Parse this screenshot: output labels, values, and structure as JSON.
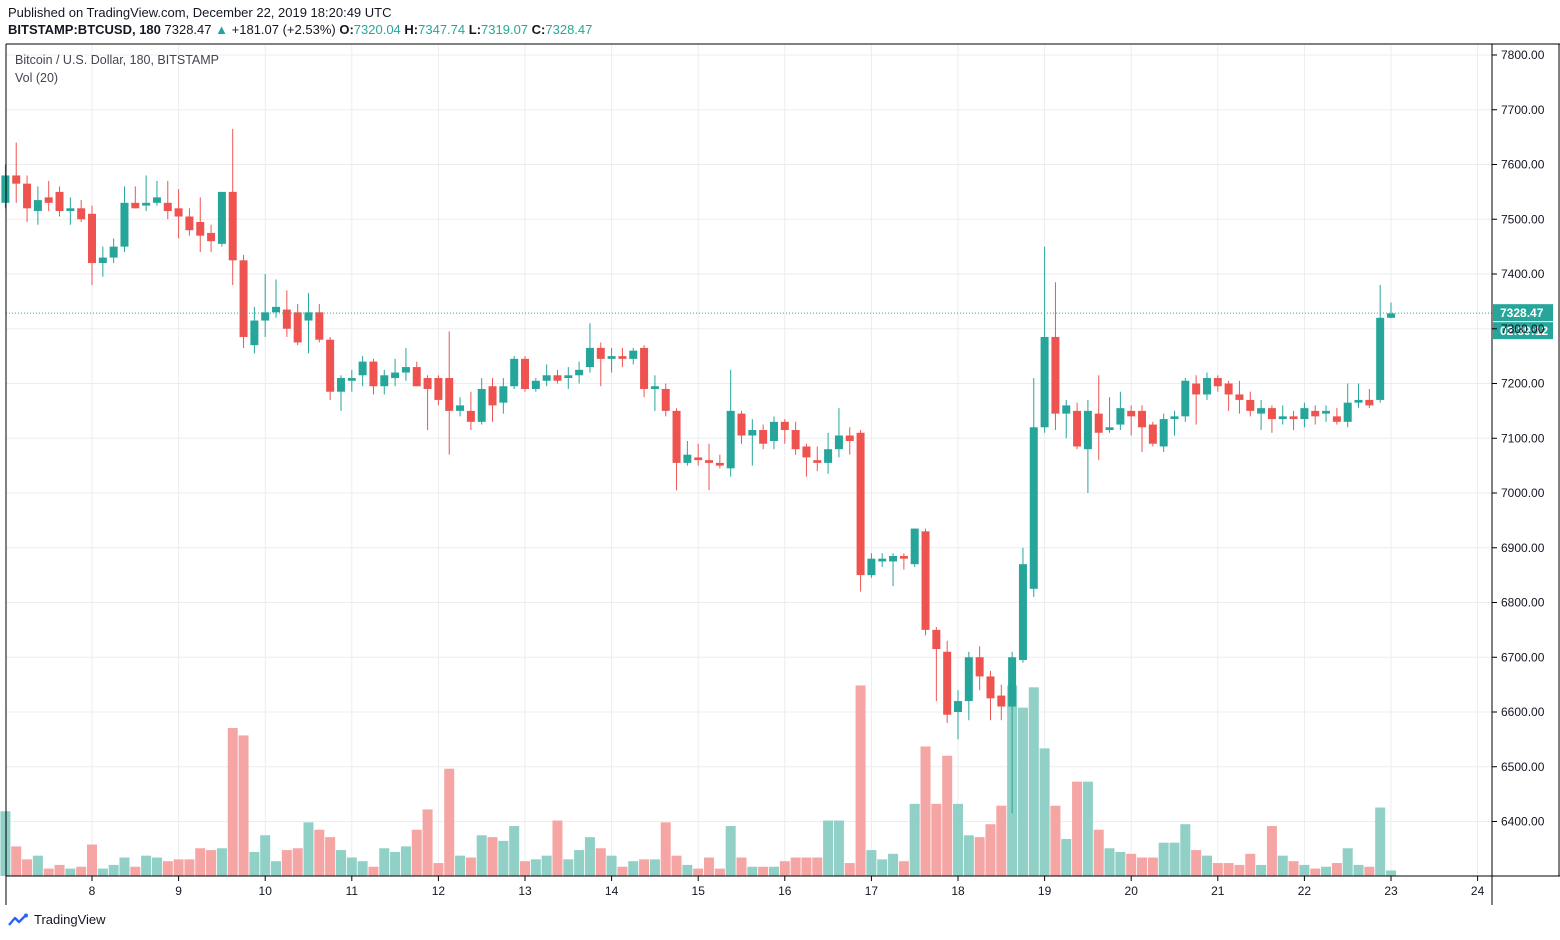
{
  "header": {
    "published": "Published on TradingView.com, December 22, 2019 18:20:49 UTC",
    "symbol": "BITSTAMP:BTCUSD, 180",
    "last": "7328.47",
    "change": "+181.07 (+2.53%)",
    "o_label": "O:",
    "o_value": "7320.04",
    "h_label": "H:",
    "h_value": "7347.74",
    "l_label": "L:",
    "l_value": "7319.07",
    "c_label": "C:",
    "c_value": "7328.47"
  },
  "overlay": {
    "title": "Bitcoin / U.S. Dollar, 180, BITSTAMP",
    "volume": "Vol (20)"
  },
  "footer": {
    "brand": "TradingView"
  },
  "colors": {
    "up": "#26a69a",
    "down": "#ef5350",
    "up_vol": "#90d0c6",
    "down_vol": "#f5a6a4",
    "grid": "#ecedf0",
    "axis": "#000000"
  },
  "chart_data": {
    "type": "candlestick",
    "title": "Bitcoin / U.S. Dollar, 180, BITSTAMP",
    "x_ticks": [
      "8",
      "9",
      "10",
      "11",
      "12",
      "13",
      "14",
      "15",
      "16",
      "17",
      "18",
      "19",
      "20",
      "21",
      "22",
      "23",
      "24"
    ],
    "y_ticks": [
      "6400.00",
      "6500.00",
      "6600.00",
      "6700.00",
      "6800.00",
      "6900.00",
      "7000.00",
      "7100.00",
      "7200.00",
      "7300.00",
      "7400.00",
      "7500.00",
      "7600.00",
      "7700.00",
      "7800.00"
    ],
    "y_range": [
      6290,
      7820
    ],
    "x_range_days": [
      7.0,
      24.0
    ],
    "last_price": 7328.47,
    "last_price_label": "7328.47",
    "countdown_label": "02:39:12",
    "volume_axis_max": 1000,
    "candles": [
      {
        "t": 7.0,
        "o": 7530,
        "h": 7600,
        "l": 7520,
        "c": 7580,
        "v": 35
      },
      {
        "t": 7.125,
        "o": 7580,
        "h": 7640,
        "l": 7530,
        "c": 7565,
        "v": 16
      },
      {
        "t": 7.25,
        "o": 7565,
        "h": 7580,
        "l": 7495,
        "c": 7520,
        "v": 9
      },
      {
        "t": 7.375,
        "o": 7515,
        "h": 7560,
        "l": 7490,
        "c": 7535,
        "v": 11
      },
      {
        "t": 7.5,
        "o": 7540,
        "h": 7570,
        "l": 7515,
        "c": 7530,
        "v": 4
      },
      {
        "t": 7.625,
        "o": 7550,
        "h": 7560,
        "l": 7505,
        "c": 7515,
        "v": 6
      },
      {
        "t": 7.75,
        "o": 7515,
        "h": 7540,
        "l": 7490,
        "c": 7520,
        "v": 4
      },
      {
        "t": 7.875,
        "o": 7520,
        "h": 7535,
        "l": 7495,
        "c": 7500,
        "v": 5
      },
      {
        "t": 8.0,
        "o": 7510,
        "h": 7525,
        "l": 7380,
        "c": 7420,
        "v": 17
      },
      {
        "t": 8.125,
        "o": 7420,
        "h": 7450,
        "l": 7395,
        "c": 7430,
        "v": 4
      },
      {
        "t": 8.25,
        "o": 7430,
        "h": 7465,
        "l": 7420,
        "c": 7450,
        "v": 6
      },
      {
        "t": 8.375,
        "o": 7450,
        "h": 7560,
        "l": 7440,
        "c": 7530,
        "v": 10
      },
      {
        "t": 8.5,
        "o": 7530,
        "h": 7560,
        "l": 7520,
        "c": 7520,
        "v": 5
      },
      {
        "t": 8.625,
        "o": 7525,
        "h": 7580,
        "l": 7515,
        "c": 7530,
        "v": 11
      },
      {
        "t": 8.75,
        "o": 7530,
        "h": 7570,
        "l": 7525,
        "c": 7540,
        "v": 10
      },
      {
        "t": 8.875,
        "o": 7530,
        "h": 7570,
        "l": 7500,
        "c": 7515,
        "v": 8
      },
      {
        "t": 9.0,
        "o": 7520,
        "h": 7555,
        "l": 7465,
        "c": 7505,
        "v": 9
      },
      {
        "t": 9.125,
        "o": 7505,
        "h": 7520,
        "l": 7470,
        "c": 7480,
        "v": 9
      },
      {
        "t": 9.25,
        "o": 7495,
        "h": 7540,
        "l": 7440,
        "c": 7470,
        "v": 15
      },
      {
        "t": 9.375,
        "o": 7475,
        "h": 7490,
        "l": 7440,
        "c": 7460,
        "v": 14
      },
      {
        "t": 9.5,
        "o": 7455,
        "h": 7545,
        "l": 7450,
        "c": 7550,
        "v": 15
      },
      {
        "t": 9.625,
        "o": 7550,
        "h": 7665,
        "l": 7380,
        "c": 7425,
        "v": 80
      },
      {
        "t": 9.75,
        "o": 7425,
        "h": 7435,
        "l": 7265,
        "c": 7285,
        "v": 76
      },
      {
        "t": 9.875,
        "o": 7270,
        "h": 7340,
        "l": 7255,
        "c": 7315,
        "v": 13
      },
      {
        "t": 10.0,
        "o": 7315,
        "h": 7400,
        "l": 7285,
        "c": 7330,
        "v": 22
      },
      {
        "t": 10.125,
        "o": 7330,
        "h": 7390,
        "l": 7320,
        "c": 7340,
        "v": 8
      },
      {
        "t": 10.25,
        "o": 7335,
        "h": 7370,
        "l": 7285,
        "c": 7300,
        "v": 14
      },
      {
        "t": 10.375,
        "o": 7330,
        "h": 7345,
        "l": 7270,
        "c": 7275,
        "v": 15
      },
      {
        "t": 10.5,
        "o": 7315,
        "h": 7365,
        "l": 7255,
        "c": 7330,
        "v": 29
      },
      {
        "t": 10.625,
        "o": 7330,
        "h": 7345,
        "l": 7275,
        "c": 7280,
        "v": 25
      },
      {
        "t": 10.75,
        "o": 7280,
        "h": 7285,
        "l": 7170,
        "c": 7185,
        "v": 21
      },
      {
        "t": 10.875,
        "o": 7185,
        "h": 7215,
        "l": 7150,
        "c": 7210,
        "v": 14
      },
      {
        "t": 11.0,
        "o": 7205,
        "h": 7225,
        "l": 7185,
        "c": 7210,
        "v": 10
      },
      {
        "t": 11.125,
        "o": 7215,
        "h": 7250,
        "l": 7195,
        "c": 7240,
        "v": 8
      },
      {
        "t": 11.25,
        "o": 7240,
        "h": 7245,
        "l": 7180,
        "c": 7195,
        "v": 5
      },
      {
        "t": 11.375,
        "o": 7195,
        "h": 7225,
        "l": 7180,
        "c": 7215,
        "v": 15
      },
      {
        "t": 11.5,
        "o": 7210,
        "h": 7245,
        "l": 7195,
        "c": 7220,
        "v": 13
      },
      {
        "t": 11.625,
        "o": 7220,
        "h": 7265,
        "l": 7205,
        "c": 7230,
        "v": 16
      },
      {
        "t": 11.75,
        "o": 7230,
        "h": 7240,
        "l": 7195,
        "c": 7195,
        "v": 25
      },
      {
        "t": 11.875,
        "o": 7210,
        "h": 7215,
        "l": 7115,
        "c": 7190,
        "v": 36
      },
      {
        "t": 12.0,
        "o": 7210,
        "h": 7215,
        "l": 7160,
        "c": 7170,
        "v": 7
      },
      {
        "t": 12.125,
        "o": 7210,
        "h": 7295,
        "l": 7070,
        "c": 7150,
        "v": 58
      },
      {
        "t": 12.25,
        "o": 7150,
        "h": 7175,
        "l": 7140,
        "c": 7160,
        "v": 11
      },
      {
        "t": 12.375,
        "o": 7150,
        "h": 7185,
        "l": 7115,
        "c": 7130,
        "v": 10
      },
      {
        "t": 12.5,
        "o": 7130,
        "h": 7210,
        "l": 7125,
        "c": 7190,
        "v": 22
      },
      {
        "t": 12.625,
        "o": 7195,
        "h": 7210,
        "l": 7130,
        "c": 7160,
        "v": 21
      },
      {
        "t": 12.75,
        "o": 7165,
        "h": 7210,
        "l": 7145,
        "c": 7195,
        "v": 19
      },
      {
        "t": 12.875,
        "o": 7195,
        "h": 7250,
        "l": 7190,
        "c": 7245,
        "v": 27
      },
      {
        "t": 13.0,
        "o": 7245,
        "h": 7250,
        "l": 7185,
        "c": 7190,
        "v": 8
      },
      {
        "t": 13.125,
        "o": 7190,
        "h": 7210,
        "l": 7185,
        "c": 7205,
        "v": 9
      },
      {
        "t": 13.25,
        "o": 7205,
        "h": 7235,
        "l": 7195,
        "c": 7215,
        "v": 11
      },
      {
        "t": 13.375,
        "o": 7215,
        "h": 7225,
        "l": 7200,
        "c": 7205,
        "v": 30
      },
      {
        "t": 13.5,
        "o": 7210,
        "h": 7230,
        "l": 7190,
        "c": 7215,
        "v": 9
      },
      {
        "t": 13.625,
        "o": 7215,
        "h": 7240,
        "l": 7200,
        "c": 7225,
        "v": 14
      },
      {
        "t": 13.75,
        "o": 7230,
        "h": 7310,
        "l": 7220,
        "c": 7265,
        "v": 21
      },
      {
        "t": 13.875,
        "o": 7265,
        "h": 7275,
        "l": 7195,
        "c": 7245,
        "v": 15
      },
      {
        "t": 14.0,
        "o": 7245,
        "h": 7265,
        "l": 7220,
        "c": 7250,
        "v": 11
      },
      {
        "t": 14.125,
        "o": 7250,
        "h": 7265,
        "l": 7230,
        "c": 7245,
        "v": 5
      },
      {
        "t": 14.25,
        "o": 7245,
        "h": 7265,
        "l": 7235,
        "c": 7260,
        "v": 8
      },
      {
        "t": 14.375,
        "o": 7265,
        "h": 7270,
        "l": 7175,
        "c": 7190,
        "v": 9
      },
      {
        "t": 14.5,
        "o": 7190,
        "h": 7215,
        "l": 7150,
        "c": 7195,
        "v": 9
      },
      {
        "t": 14.625,
        "o": 7190,
        "h": 7200,
        "l": 7140,
        "c": 7150,
        "v": 29
      },
      {
        "t": 14.75,
        "o": 7150,
        "h": 7155,
        "l": 7005,
        "c": 7055,
        "v": 11
      },
      {
        "t": 14.875,
        "o": 7055,
        "h": 7095,
        "l": 7050,
        "c": 7070,
        "v": 6
      },
      {
        "t": 15.0,
        "o": 7065,
        "h": 7090,
        "l": 7050,
        "c": 7060,
        "v": 4
      },
      {
        "t": 15.125,
        "o": 7060,
        "h": 7090,
        "l": 7005,
        "c": 7055,
        "v": 10
      },
      {
        "t": 15.25,
        "o": 7055,
        "h": 7070,
        "l": 7045,
        "c": 7050,
        "v": 4
      },
      {
        "t": 15.375,
        "o": 7045,
        "h": 7225,
        "l": 7030,
        "c": 7150,
        "v": 27
      },
      {
        "t": 15.5,
        "o": 7145,
        "h": 7150,
        "l": 7090,
        "c": 7105,
        "v": 10
      },
      {
        "t": 15.625,
        "o": 7105,
        "h": 7135,
        "l": 7050,
        "c": 7115,
        "v": 5
      },
      {
        "t": 15.75,
        "o": 7115,
        "h": 7125,
        "l": 7080,
        "c": 7090,
        "v": 5
      },
      {
        "t": 15.875,
        "o": 7095,
        "h": 7140,
        "l": 7080,
        "c": 7130,
        "v": 5
      },
      {
        "t": 16.0,
        "o": 7130,
        "h": 7135,
        "l": 7090,
        "c": 7115,
        "v": 8
      },
      {
        "t": 16.125,
        "o": 7115,
        "h": 7130,
        "l": 7070,
        "c": 7080,
        "v": 10
      },
      {
        "t": 16.25,
        "o": 7085,
        "h": 7090,
        "l": 7030,
        "c": 7065,
        "v": 10
      },
      {
        "t": 16.375,
        "o": 7060,
        "h": 7085,
        "l": 7040,
        "c": 7055,
        "v": 10
      },
      {
        "t": 16.5,
        "o": 7055,
        "h": 7110,
        "l": 7035,
        "c": 7080,
        "v": 30
      },
      {
        "t": 16.625,
        "o": 7080,
        "h": 7155,
        "l": 7065,
        "c": 7105,
        "v": 30
      },
      {
        "t": 16.75,
        "o": 7105,
        "h": 7120,
        "l": 7070,
        "c": 7095,
        "v": 7
      },
      {
        "t": 16.875,
        "o": 7110,
        "h": 7115,
        "l": 6820,
        "c": 6850,
        "v": 103
      },
      {
        "t": 17.0,
        "o": 6850,
        "h": 6890,
        "l": 6845,
        "c": 6880,
        "v": 14
      },
      {
        "t": 17.125,
        "o": 6875,
        "h": 6890,
        "l": 6865,
        "c": 6880,
        "v": 9
      },
      {
        "t": 17.25,
        "o": 6875,
        "h": 6890,
        "l": 6830,
        "c": 6885,
        "v": 12
      },
      {
        "t": 17.375,
        "o": 6885,
        "h": 6890,
        "l": 6860,
        "c": 6880,
        "v": 8
      },
      {
        "t": 17.5,
        "o": 6870,
        "h": 6935,
        "l": 6865,
        "c": 6935,
        "v": 39
      },
      {
        "t": 17.625,
        "o": 6930,
        "h": 6935,
        "l": 6740,
        "c": 6750,
        "v": 70
      },
      {
        "t": 17.75,
        "o": 6750,
        "h": 6755,
        "l": 6620,
        "c": 6715,
        "v": 39
      },
      {
        "t": 17.875,
        "o": 6710,
        "h": 6730,
        "l": 6580,
        "c": 6595,
        "v": 65
      },
      {
        "t": 18.0,
        "o": 6600,
        "h": 6640,
        "l": 6550,
        "c": 6620,
        "v": 39
      },
      {
        "t": 18.125,
        "o": 6620,
        "h": 6710,
        "l": 6585,
        "c": 6700,
        "v": 22
      },
      {
        "t": 18.25,
        "o": 6700,
        "h": 6720,
        "l": 6640,
        "c": 6665,
        "v": 21
      },
      {
        "t": 18.375,
        "o": 6665,
        "h": 6675,
        "l": 6585,
        "c": 6625,
        "v": 28
      },
      {
        "t": 18.5,
        "o": 6630,
        "h": 6650,
        "l": 6585,
        "c": 6610,
        "v": 38
      },
      {
        "t": 18.625,
        "o": 6610,
        "h": 6710,
        "l": 6415,
        "c": 6700,
        "v": 103
      },
      {
        "t": 18.75,
        "o": 6695,
        "h": 6900,
        "l": 6690,
        "c": 6870,
        "v": 91
      },
      {
        "t": 18.875,
        "o": 6825,
        "h": 7210,
        "l": 6810,
        "c": 7120,
        "v": 102
      },
      {
        "t": 19.0,
        "o": 7120,
        "h": 7450,
        "l": 7110,
        "c": 7285,
        "v": 69
      },
      {
        "t": 19.125,
        "o": 7285,
        "h": 7385,
        "l": 7115,
        "c": 7145,
        "v": 38
      },
      {
        "t": 19.25,
        "o": 7145,
        "h": 7170,
        "l": 7100,
        "c": 7160,
        "v": 20
      },
      {
        "t": 19.375,
        "o": 7150,
        "h": 7165,
        "l": 7080,
        "c": 7085,
        "v": 51
      },
      {
        "t": 19.5,
        "o": 7080,
        "h": 7170,
        "l": 7000,
        "c": 7150,
        "v": 51
      },
      {
        "t": 19.625,
        "o": 7145,
        "h": 7215,
        "l": 7060,
        "c": 7110,
        "v": 25
      },
      {
        "t": 19.75,
        "o": 7115,
        "h": 7175,
        "l": 7110,
        "c": 7120,
        "v": 15
      },
      {
        "t": 19.875,
        "o": 7125,
        "h": 7185,
        "l": 7115,
        "c": 7155,
        "v": 13
      },
      {
        "t": 20.0,
        "o": 7150,
        "h": 7160,
        "l": 7105,
        "c": 7140,
        "v": 12
      },
      {
        "t": 20.125,
        "o": 7150,
        "h": 7160,
        "l": 7075,
        "c": 7120,
        "v": 10
      },
      {
        "t": 20.25,
        "o": 7125,
        "h": 7130,
        "l": 7085,
        "c": 7090,
        "v": 10
      },
      {
        "t": 20.375,
        "o": 7085,
        "h": 7145,
        "l": 7075,
        "c": 7135,
        "v": 18
      },
      {
        "t": 20.5,
        "o": 7135,
        "h": 7150,
        "l": 7105,
        "c": 7140,
        "v": 18
      },
      {
        "t": 20.625,
        "o": 7140,
        "h": 7210,
        "l": 7130,
        "c": 7205,
        "v": 28
      },
      {
        "t": 20.75,
        "o": 7200,
        "h": 7215,
        "l": 7125,
        "c": 7180,
        "v": 14
      },
      {
        "t": 20.875,
        "o": 7180,
        "h": 7220,
        "l": 7170,
        "c": 7210,
        "v": 11
      },
      {
        "t": 21.0,
        "o": 7210,
        "h": 7215,
        "l": 7185,
        "c": 7195,
        "v": 7
      },
      {
        "t": 21.125,
        "o": 7200,
        "h": 7205,
        "l": 7150,
        "c": 7180,
        "v": 7
      },
      {
        "t": 21.25,
        "o": 7180,
        "h": 7205,
        "l": 7145,
        "c": 7170,
        "v": 6
      },
      {
        "t": 21.375,
        "o": 7170,
        "h": 7185,
        "l": 7140,
        "c": 7150,
        "v": 12
      },
      {
        "t": 21.5,
        "o": 7145,
        "h": 7170,
        "l": 7115,
        "c": 7155,
        "v": 6
      },
      {
        "t": 21.625,
        "o": 7155,
        "h": 7160,
        "l": 7110,
        "c": 7135,
        "v": 27
      },
      {
        "t": 21.75,
        "o": 7135,
        "h": 7160,
        "l": 7125,
        "c": 7140,
        "v": 11
      },
      {
        "t": 21.875,
        "o": 7140,
        "h": 7150,
        "l": 7115,
        "c": 7135,
        "v": 8
      },
      {
        "t": 22.0,
        "o": 7135,
        "h": 7165,
        "l": 7120,
        "c": 7155,
        "v": 6
      },
      {
        "t": 22.125,
        "o": 7150,
        "h": 7160,
        "l": 7125,
        "c": 7140,
        "v": 4
      },
      {
        "t": 22.25,
        "o": 7145,
        "h": 7160,
        "l": 7130,
        "c": 7150,
        "v": 5
      },
      {
        "t": 22.375,
        "o": 7140,
        "h": 7155,
        "l": 7125,
        "c": 7130,
        "v": 7
      },
      {
        "t": 22.5,
        "o": 7130,
        "h": 7200,
        "l": 7120,
        "c": 7165,
        "v": 15
      },
      {
        "t": 22.625,
        "o": 7165,
        "h": 7200,
        "l": 7155,
        "c": 7170,
        "v": 6
      },
      {
        "t": 22.75,
        "o": 7170,
        "h": 7190,
        "l": 7155,
        "c": 7160,
        "v": 5
      },
      {
        "t": 22.875,
        "o": 7170,
        "h": 7380,
        "l": 7165,
        "c": 7320,
        "v": 37
      },
      {
        "t": 23.0,
        "o": 7320,
        "h": 7348,
        "l": 7319,
        "c": 7328,
        "v": 3
      }
    ]
  }
}
